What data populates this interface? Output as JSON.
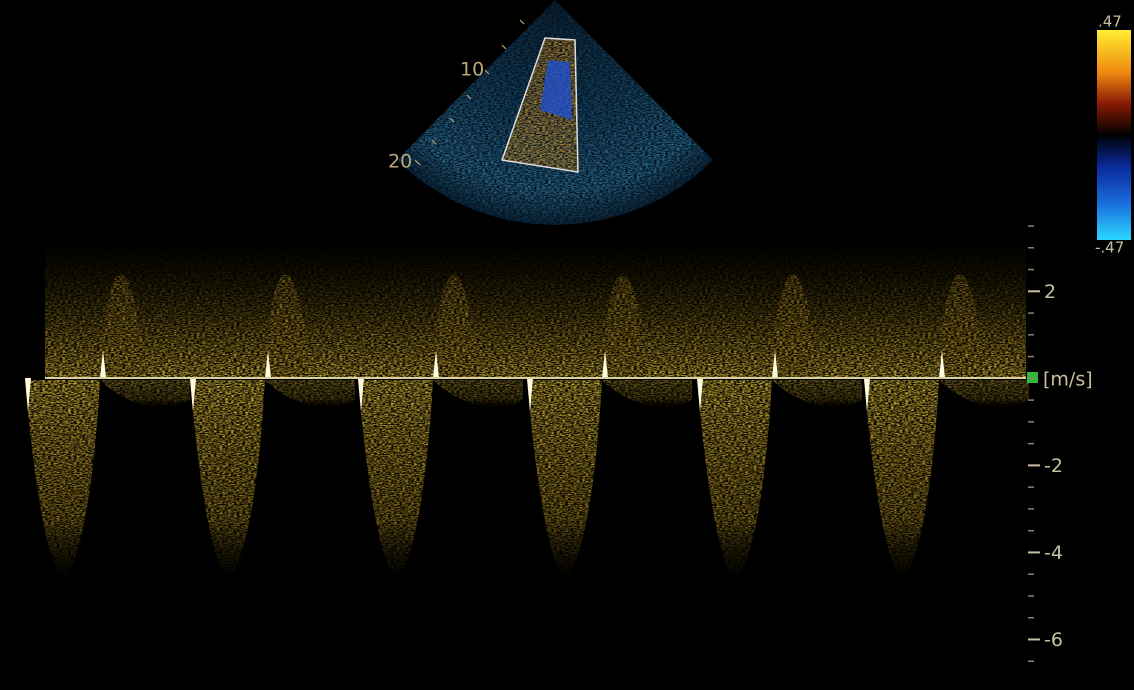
{
  "sector": {
    "depth_labels": [
      "10",
      "20"
    ]
  },
  "color_scale": {
    "max_label": ".47",
    "min_label": "-.47"
  },
  "velocity_scale": {
    "unit": "[m/s]",
    "ylim": [
      3.5,
      -7
    ],
    "ticks": [
      2,
      -2,
      -4,
      -6
    ]
  }
}
